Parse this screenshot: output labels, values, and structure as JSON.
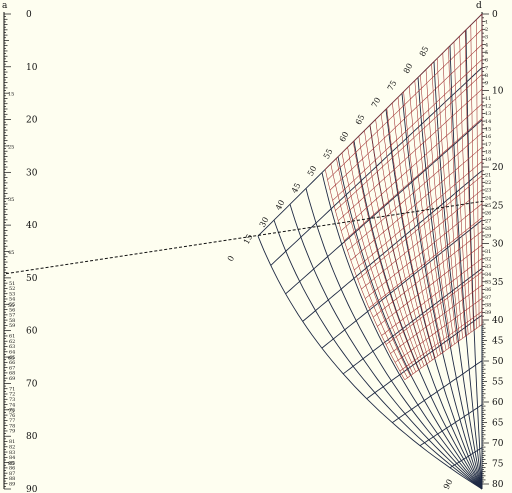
{
  "diagram": {
    "kind": "nomogram",
    "left_scale": {
      "name": "a",
      "range": [
        0,
        90
      ],
      "major_labels": [
        "0",
        "10",
        "20",
        "30",
        "40",
        "50",
        "60",
        "70",
        "80",
        "90"
      ],
      "mid_labels": [
        "15",
        "25",
        "35",
        "45",
        "55",
        "65",
        "75",
        "85"
      ],
      "minor_labels": [
        "51",
        "52",
        "53",
        "54",
        "55",
        "56",
        "57",
        "58",
        "59",
        "61",
        "62",
        "63",
        "64",
        "65",
        "66",
        "67",
        "68",
        "69",
        "71",
        "72",
        "73",
        "74",
        "75",
        "76",
        "77",
        "78",
        "79",
        "81",
        "82",
        "83",
        "84",
        "85",
        "86",
        "87",
        "88",
        "89"
      ]
    },
    "right_scale": {
      "name": "d",
      "range": [
        0,
        80
      ],
      "major_labels": [
        "0",
        "10",
        "20",
        "25",
        "30",
        "35",
        "40",
        "45",
        "50",
        "55",
        "60",
        "65",
        "70",
        "75",
        "80"
      ],
      "minor_labels": [
        "1",
        "2",
        "3",
        "4",
        "5",
        "6",
        "7",
        "8",
        "9",
        "11",
        "12",
        "13",
        "14",
        "15",
        "16",
        "17",
        "18",
        "19",
        "21",
        "22",
        "23",
        "24",
        "25",
        "26",
        "27",
        "28",
        "29",
        "31",
        "32",
        "33",
        "34",
        "35",
        "36",
        "37",
        "38",
        "39"
      ]
    },
    "diagonal_scale": {
      "labels": [
        "0",
        "15",
        "30",
        "40",
        "45",
        "50",
        "55",
        "60",
        "65",
        "70",
        "75",
        "80",
        "85",
        "90"
      ]
    },
    "key_line": {
      "from_left_value": 49.2,
      "to_right_value": 24.5
    },
    "colors": {
      "background": "#fefef0",
      "ink": "#111111",
      "outer_grid": "#1f2a44",
      "inner_grid": "#a03030"
    }
  }
}
